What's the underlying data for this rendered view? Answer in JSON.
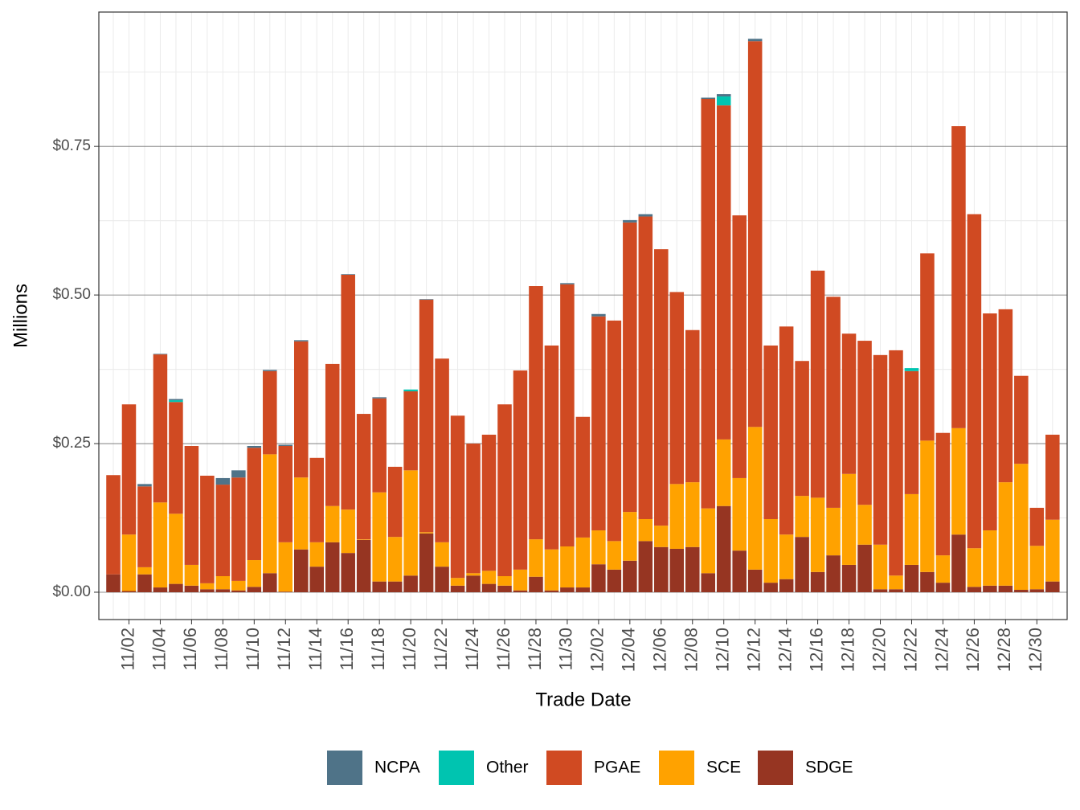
{
  "chart_data": {
    "type": "stacked_bar",
    "xlabel": "Trade Date",
    "ylabel": "Millions",
    "categories": [
      null,
      "11/02",
      null,
      "11/04",
      null,
      "11/06",
      null,
      "11/08",
      null,
      "11/10",
      null,
      "11/12",
      null,
      "11/14",
      null,
      "11/16",
      null,
      "11/18",
      null,
      "11/20",
      null,
      "11/22",
      null,
      "11/24",
      null,
      "11/26",
      null,
      "11/28",
      null,
      "11/30",
      null,
      "12/02",
      null,
      "12/04",
      null,
      "12/06",
      null,
      "12/08",
      null,
      "12/10",
      null,
      "12/12",
      null,
      "12/14",
      null,
      "12/16",
      null,
      "12/18",
      null,
      "12/20",
      null,
      "12/22",
      null,
      "12/24",
      null,
      "12/26",
      null,
      "12/28",
      null,
      "12/30",
      null
    ],
    "series": [
      {
        "name": "NCPA",
        "color": "#4f7388",
        "values": [
          0,
          0,
          0.004,
          0.001,
          0.002,
          0,
          0,
          0.011,
          0.012,
          0.003,
          0.002,
          0.002,
          0.002,
          0,
          0,
          0.001,
          0,
          0.002,
          0,
          0,
          0.001,
          0,
          0,
          0,
          0,
          0,
          0,
          0,
          0,
          0.002,
          0,
          0.004,
          0,
          0.004,
          0.004,
          0,
          0,
          0,
          0.002,
          0.004,
          0,
          0.004,
          0,
          0,
          0,
          0,
          0,
          0,
          0,
          0,
          0,
          0,
          0,
          0,
          0,
          0,
          0,
          0,
          0,
          0,
          0
        ]
      },
      {
        "name": "Other",
        "color": "#00c4b0",
        "values": [
          0,
          0,
          0,
          0,
          0.003,
          0,
          0,
          0,
          0,
          0,
          0,
          0,
          0,
          0,
          0,
          0,
          0,
          0,
          0,
          0.003,
          0,
          0,
          0,
          0,
          0,
          0,
          0,
          0,
          0,
          0,
          0,
          0,
          0,
          0,
          0,
          0,
          0,
          0,
          0,
          0.015,
          0,
          0,
          0,
          0,
          0,
          0,
          0,
          0,
          0,
          0,
          0,
          0.005,
          0,
          0,
          0,
          0,
          0,
          0,
          0,
          0,
          0
        ]
      },
      {
        "name": "PGAE",
        "color": "#d04a22",
        "values": [
          0.167,
          0.219,
          0.136,
          0.249,
          0.188,
          0.2,
          0.181,
          0.154,
          0.174,
          0.189,
          0.14,
          0.162,
          0.229,
          0.142,
          0.239,
          0.395,
          0.211,
          0.158,
          0.118,
          0.133,
          0.391,
          0.309,
          0.273,
          0.218,
          0.229,
          0.289,
          0.335,
          0.426,
          0.343,
          0.441,
          0.203,
          0.36,
          0.371,
          0.487,
          0.509,
          0.465,
          0.323,
          0.256,
          0.689,
          0.562,
          0.442,
          0.649,
          0.292,
          0.35,
          0.227,
          0.382,
          0.355,
          0.236,
          0.276,
          0.319,
          0.379,
          0.207,
          0.315,
          0.206,
          0.508,
          0.562,
          0.365,
          0.291,
          0.148,
          0.064,
          0.143
        ]
      },
      {
        "name": "SCE",
        "color": "#ffa200",
        "values": [
          0,
          0.095,
          0.012,
          0.143,
          0.118,
          0.035,
          0.01,
          0.022,
          0.016,
          0.045,
          0.2,
          0.083,
          0.121,
          0.041,
          0.061,
          0.073,
          0.001,
          0.15,
          0.075,
          0.177,
          0.002,
          0.041,
          0.013,
          0.004,
          0.022,
          0.016,
          0.035,
          0.063,
          0.069,
          0.069,
          0.084,
          0.057,
          0.048,
          0.082,
          0.037,
          0.036,
          0.109,
          0.109,
          0.109,
          0.112,
          0.122,
          0.24,
          0.107,
          0.075,
          0.069,
          0.125,
          0.08,
          0.153,
          0.067,
          0.075,
          0.023,
          0.119,
          0.221,
          0.046,
          0.179,
          0.065,
          0.093,
          0.174,
          0.212,
          0.073,
          0.104
        ]
      },
      {
        "name": "SDGE",
        "color": "#963522",
        "values": [
          0.03,
          0.002,
          0.03,
          0.008,
          0.014,
          0.011,
          0.005,
          0.005,
          0.003,
          0.009,
          0.032,
          0.001,
          0.072,
          0.043,
          0.084,
          0.066,
          0.088,
          0.018,
          0.018,
          0.028,
          0.099,
          0.043,
          0.011,
          0.028,
          0.014,
          0.011,
          0.003,
          0.026,
          0.003,
          0.008,
          0.008,
          0.047,
          0.038,
          0.053,
          0.086,
          0.076,
          0.073,
          0.076,
          0.032,
          0.145,
          0.07,
          0.038,
          0.016,
          0.022,
          0.093,
          0.034,
          0.062,
          0.046,
          0.08,
          0.005,
          0.005,
          0.046,
          0.034,
          0.016,
          0.097,
          0.009,
          0.011,
          0.011,
          0.004,
          0.005,
          0.018
        ]
      }
    ],
    "ylim": [
      -0.046,
      0.976
    ],
    "yticks": [
      {
        "value": 0,
        "label": "$0.00"
      },
      {
        "value": 0.25,
        "label": "$0.25"
      },
      {
        "value": 0.5,
        "label": "$0.50"
      },
      {
        "value": 0.75,
        "label": "$0.75"
      }
    ],
    "grid": true,
    "legend": "bottom"
  }
}
